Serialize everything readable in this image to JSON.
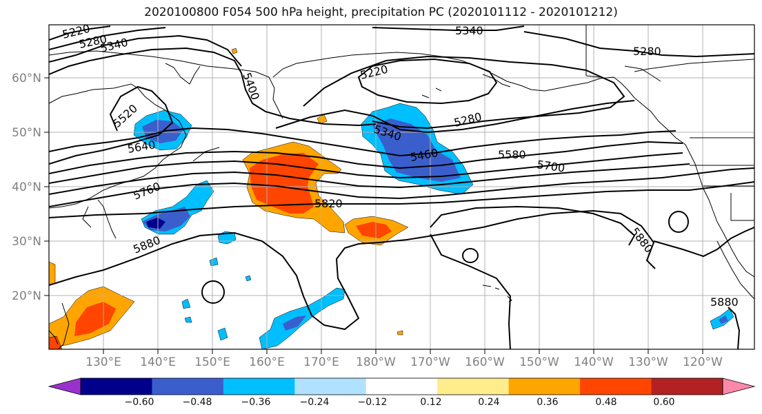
{
  "title": "2020100800 F054 500 hPa height, precipitation PC (2020101112 - 2020101212)",
  "lat_labels": [
    "60°N",
    "50°N",
    "40°N",
    "30°N",
    "20°N"
  ],
  "lon_labels": [
    "130°E",
    "140°E",
    "150°E",
    "160°E",
    "170°E",
    "180°W",
    "170°W",
    "160°W",
    "150°W",
    "140°W",
    "130°W",
    "120°W"
  ],
  "contour_labels": [
    "5220",
    "5280",
    "5340",
    "5340",
    "5280",
    "5400",
    "5220",
    "5280",
    "5520",
    "5340",
    "5640",
    "5460",
    "5580",
    "5700",
    "5760",
    "5820",
    "5880",
    "5880",
    "5880"
  ],
  "colorbar": {
    "colors": [
      "#9932cc",
      "#00008b",
      "#3a5fcd",
      "#00bfff",
      "#b0e2ff",
      "#ffffff",
      "#ffec8b",
      "#ffa500",
      "#ff4500",
      "#b22222",
      "#ff88aa"
    ],
    "tick_labels": [
      "−0.60",
      "−0.48",
      "−0.36",
      "−0.24",
      "−0.12",
      "0.12",
      "0.24",
      "0.36",
      "0.48",
      "0.60"
    ]
  }
}
